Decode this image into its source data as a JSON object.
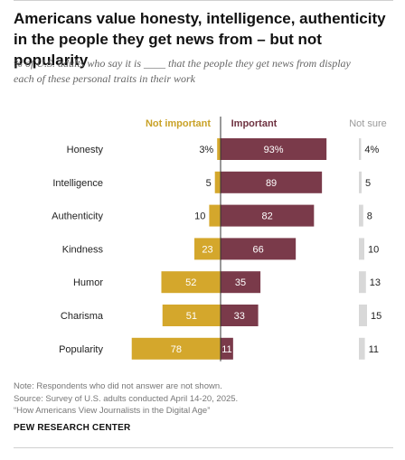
{
  "header": {
    "title": "Americans value honesty, intelligence, authenticity in the people they get news from – but not popularity",
    "subtitle_lines": [
      "% of U.S. adults who say it is ____ that the people they get news from display",
      "each of these personal traits in their work"
    ]
  },
  "chart_data": {
    "type": "bar",
    "subtype": "diverging-stacked-bar",
    "categories": [
      "Honesty",
      "Intelligence",
      "Authenticity",
      "Kindness",
      "Humor",
      "Charisma",
      "Popularity"
    ],
    "series": [
      {
        "name": "Not important",
        "values": [
          3,
          5,
          10,
          23,
          52,
          51,
          78
        ],
        "labels": [
          "3%",
          "5",
          "10",
          "23",
          "52",
          "51",
          "78"
        ],
        "color": "#d4a72c"
      },
      {
        "name": "Important",
        "values": [
          93,
          89,
          82,
          66,
          35,
          33,
          11
        ],
        "labels": [
          "93%",
          "89",
          "82",
          "66",
          "35",
          "33",
          "11"
        ],
        "color": "#7a3a4a"
      },
      {
        "name": "Not sure",
        "values": [
          4,
          5,
          8,
          10,
          13,
          15,
          11
        ],
        "labels": [
          "4%",
          "5",
          "8",
          "10",
          "13",
          "15",
          "11"
        ],
        "color": "#d8d8d8"
      }
    ],
    "legend_colors": {
      "not_important": "#c9a227",
      "important": "#6e3240",
      "not_sure": "#9a9a9a"
    },
    "divider_color": "#333333"
  },
  "footer": {
    "note": "Note: Respondents who did not answer are not shown.",
    "source": "Source: Survey of U.S. adults conducted April 14-20, 2025.",
    "report": "“How Americans View Journalists in the Digital Age”",
    "brand": "PEW RESEARCH CENTER"
  }
}
